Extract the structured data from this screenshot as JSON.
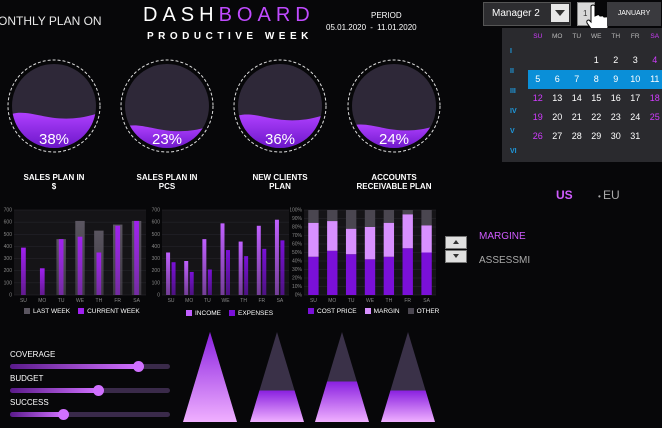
{
  "header": {
    "plan_title": "ONTHLY PLAN ON",
    "title_part1": "DASH",
    "title_part2": "BOARD",
    "subtitle": "PRODUCTIVE WEEK",
    "period_label": "PERIOD",
    "period_dates": "05.01.2020  -  11.01.2020"
  },
  "controls": {
    "manager": "Manager 2",
    "month": "JANUARY",
    "spin_value": "1"
  },
  "calendar": {
    "day_headers": [
      "SU",
      "MO",
      "TU",
      "WE",
      "TH",
      "FR",
      "SA"
    ],
    "week_numbers": [
      "I",
      "II",
      "III",
      "IV",
      "V",
      "VI"
    ],
    "weeks": [
      [
        "",
        "",
        "",
        "1",
        "2",
        "3",
        "4"
      ],
      [
        "5",
        "6",
        "7",
        "8",
        "9",
        "10",
        "11"
      ],
      [
        "12",
        "13",
        "14",
        "15",
        "16",
        "17",
        "18"
      ],
      [
        "19",
        "20",
        "21",
        "22",
        "23",
        "24",
        "25"
      ],
      [
        "26",
        "27",
        "28",
        "29",
        "30",
        "31",
        ""
      ]
    ],
    "selected_week_index": 1,
    "weekend_color": "#d13cff",
    "selection_color": "#0a8fd8"
  },
  "gauges": [
    {
      "value": "38%",
      "fill": 0.38,
      "label_line1": "SALES PLAN IN",
      "label_line2": "$"
    },
    {
      "value": "23%",
      "fill": 0.23,
      "label_line1": "SALES PLAN IN",
      "label_line2": "PCS"
    },
    {
      "value": "36%",
      "fill": 0.36,
      "label_line1": "NEW CLIENTS",
      "label_line2": "PLAN"
    },
    {
      "value": "24%",
      "fill": 0.24,
      "label_line1": "ACCOUNTS",
      "label_line2": "RECEIVABLE PLAN"
    }
  ],
  "chart_data": [
    {
      "type": "bar",
      "categories": [
        "SU",
        "MO",
        "TU",
        "WE",
        "TH",
        "FR",
        "SA"
      ],
      "y_ticks": [
        "0",
        "100",
        "200",
        "300",
        "400",
        "500",
        "600",
        "700"
      ],
      "ylim": [
        0,
        700
      ],
      "series": [
        {
          "name": "LAST WEEK",
          "values": [
            0,
            0,
            460,
            610,
            530,
            580,
            610
          ],
          "color": "#5a5560"
        },
        {
          "name": "CURRENT WEEK",
          "values": [
            390,
            220,
            460,
            480,
            350,
            570,
            610
          ],
          "color": "#a020f0"
        }
      ]
    },
    {
      "type": "bar",
      "categories": [
        "SU",
        "MO",
        "TU",
        "WE",
        "TH",
        "FR",
        "SA"
      ],
      "y_ticks": [
        "0",
        "100",
        "200",
        "300",
        "400",
        "500",
        "600",
        "700"
      ],
      "ylim": [
        0,
        700
      ],
      "series": [
        {
          "name": "INCOME",
          "values": [
            350,
            280,
            460,
            590,
            440,
            570,
            620
          ],
          "color": "#c060ff"
        },
        {
          "name": "EXPENSES",
          "values": [
            270,
            190,
            210,
            370,
            320,
            380,
            450
          ],
          "color": "#7a10d8"
        }
      ]
    },
    {
      "type": "bar",
      "categories": [
        "SU",
        "MO",
        "TU",
        "WE",
        "TH",
        "FR",
        "SA"
      ],
      "y_ticks": [
        "0%",
        "10%",
        "20%",
        "30%",
        "40%",
        "50%",
        "60%",
        "70%",
        "80%",
        "90%",
        "100%"
      ],
      "ylim": [
        0,
        100
      ],
      "series": [
        {
          "name": "COST PRICE",
          "values": [
            45,
            52,
            48,
            42,
            45,
            55,
            50
          ],
          "color": "#7a10d8"
        },
        {
          "name": "MARGIN",
          "values": [
            40,
            35,
            30,
            38,
            40,
            40,
            32
          ],
          "color": "#d890ff"
        },
        {
          "name": "OTHER",
          "values": [
            15,
            13,
            22,
            20,
            15,
            5,
            18
          ],
          "color": "#4a4650"
        }
      ]
    }
  ],
  "currency": {
    "us": "US",
    "eu": "EU"
  },
  "metric_selector": {
    "margine": "MARGINE",
    "assessmi": "ASSESSMI"
  },
  "sliders": [
    {
      "label": "COVERAGE",
      "value": 0.8
    },
    {
      "label": "BUDGET",
      "value": 0.55
    },
    {
      "label": "SUCCESS",
      "value": 0.33
    }
  ],
  "triangles": [
    {
      "fill": 1.0
    },
    {
      "fill": 0.35
    },
    {
      "fill": 0.45
    },
    {
      "fill": 0.35
    }
  ]
}
